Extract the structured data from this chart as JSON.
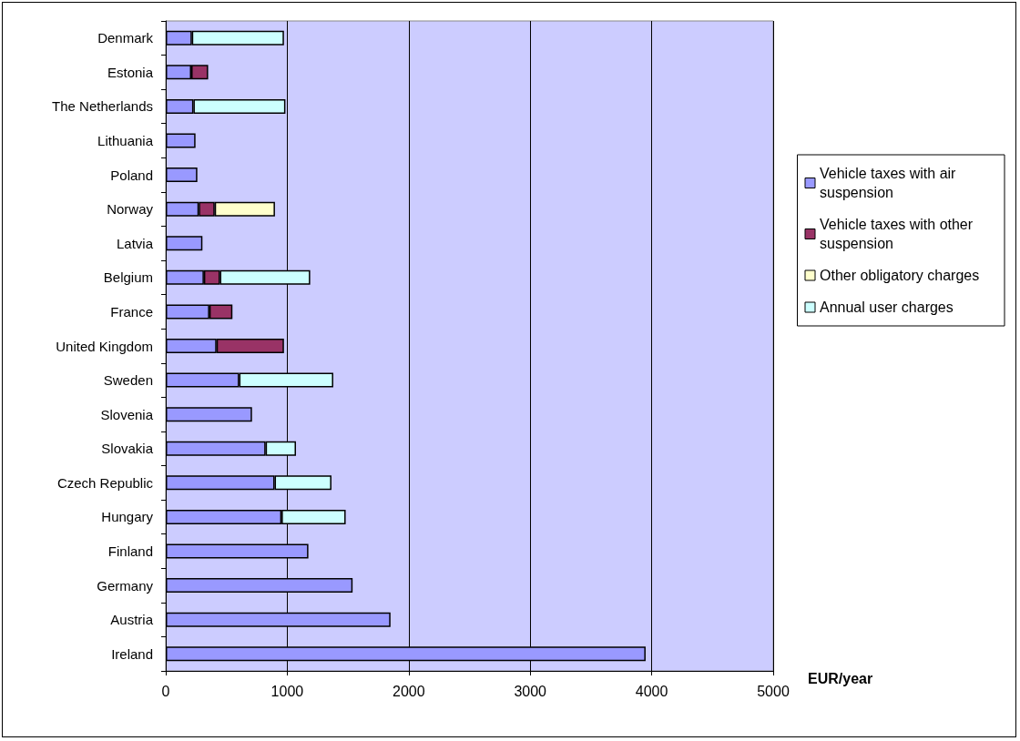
{
  "chart_data": {
    "type": "bar",
    "orientation": "horizontal",
    "stacked": true,
    "xlabel": "EUR/year",
    "categories": [
      "Denmark",
      "Estonia",
      "The Netherlands",
      "Lithuania",
      "Poland",
      "Norway",
      "Latvia",
      "Belgium",
      "France",
      "United Kingdom",
      "Sweden",
      "Slovenia",
      "Slovakia",
      "Czech Republic",
      "Hungary",
      "Finland",
      "Germany",
      "Austria",
      "Ireland"
    ],
    "series": [
      {
        "name": "Vehicle taxes with air suspension",
        "color": "#9999ff",
        "values": [
          215,
          210,
          228,
          245,
          260,
          272,
          302,
          314,
          359,
          418,
          604,
          710,
          822,
          896,
          953,
          1174,
          1538,
          1850,
          3950
        ]
      },
      {
        "name": "Vehicle taxes with other suspension",
        "color": "#993366",
        "values": [
          null,
          139,
          null,
          null,
          null,
          131,
          null,
          132,
          190,
          555,
          null,
          null,
          null,
          null,
          null,
          null,
          null,
          null,
          null
        ]
      },
      {
        "name": "Other obligatory charges",
        "color": "#ffffcc",
        "values": [
          null,
          null,
          null,
          null,
          null,
          496,
          null,
          null,
          null,
          null,
          null,
          null,
          null,
          null,
          null,
          null,
          null,
          null,
          null
        ]
      },
      {
        "name": "Annual user charges",
        "color": "#ccffff",
        "values": [
          758,
          null,
          757,
          null,
          null,
          null,
          null,
          743,
          null,
          null,
          775,
          null,
          250,
          468,
          528,
          null,
          null,
          null,
          null
        ]
      }
    ],
    "xlim": [
      0,
      5000
    ],
    "xticks": [
      0,
      1000,
      2000,
      3000,
      4000,
      5000
    ],
    "grid": "x",
    "legend": "right"
  }
}
